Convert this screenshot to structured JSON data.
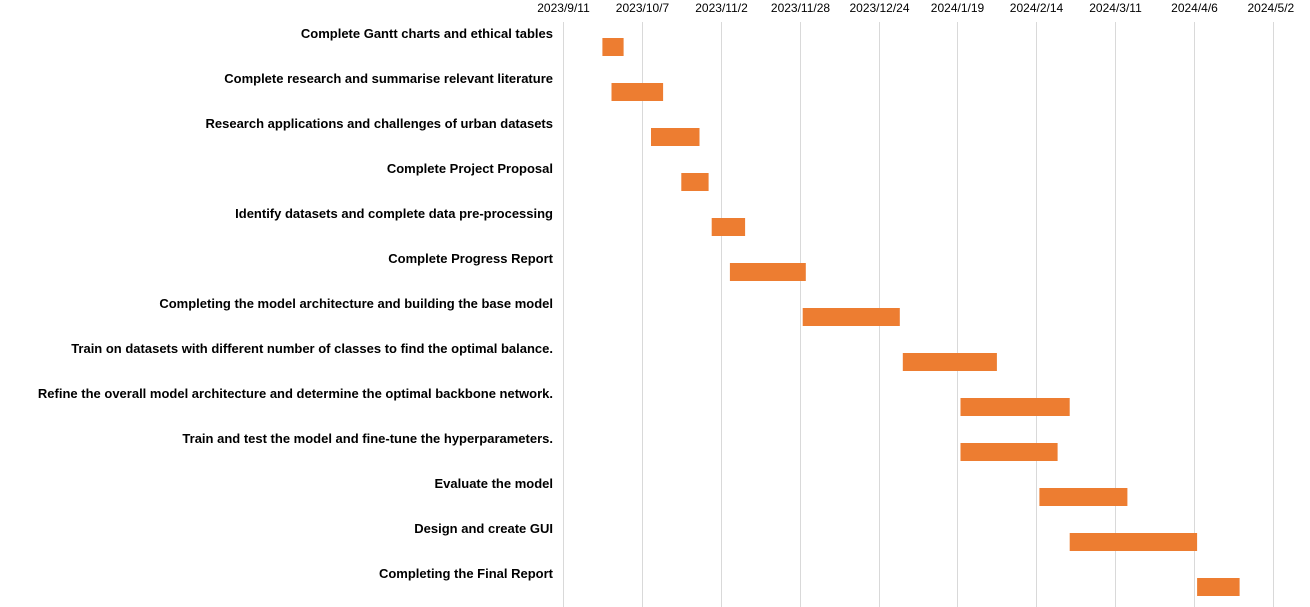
{
  "chart_data": {
    "type": "bar",
    "orientation": "horizontal-gantt",
    "title": "",
    "xlabel": "",
    "ylabel": "",
    "grid": "vertical",
    "legend": "none",
    "bar_color": "#ED7D31",
    "grid_color": "#D9D9D9",
    "xlim": [
      "2023-09-11",
      "2024-05-02"
    ],
    "x_ticks": [
      "2023/9/11",
      "2023/10/7",
      "2023/11/2",
      "2023/11/28",
      "2023/12/24",
      "2024/1/19",
      "2024/2/14",
      "2024/3/11",
      "2024/4/6",
      "2024/5/2"
    ],
    "x_tick_dates": [
      "2023-09-11",
      "2023-10-07",
      "2023-11-02",
      "2023-11-28",
      "2023-12-24",
      "2024-01-19",
      "2024-02-14",
      "2024-03-11",
      "2024-04-06",
      "2024-05-02"
    ],
    "tasks": [
      {
        "name": "Complete Gantt charts and ethical tables",
        "start": "2023-09-24",
        "end": "2023-10-01"
      },
      {
        "name": "Complete research and summarise relevant literature",
        "start": "2023-09-27",
        "end": "2023-10-14"
      },
      {
        "name": "Research applications and challenges of urban datasets",
        "start": "2023-10-10",
        "end": "2023-10-26"
      },
      {
        "name": "Complete Project Proposal",
        "start": "2023-10-20",
        "end": "2023-10-29"
      },
      {
        "name": "Identify datasets and complete data pre-processing",
        "start": "2023-10-30",
        "end": "2023-11-10"
      },
      {
        "name": "Complete Progress Report",
        "start": "2023-11-05",
        "end": "2023-11-30"
      },
      {
        "name": "Completing the model architecture and building the base model",
        "start": "2023-11-29",
        "end": "2023-12-31"
      },
      {
        "name": "Train on datasets with different number of classes to find the optimal balance.",
        "start": "2024-01-01",
        "end": "2024-02-01"
      },
      {
        "name": "Refine the overall model architecture and determine the optimal backbone network.",
        "start": "2024-01-20",
        "end": "2024-02-25"
      },
      {
        "name": "Train and test the model and fine-tune the hyperparameters.",
        "start": "2024-01-20",
        "end": "2024-02-21"
      },
      {
        "name": "Evaluate the model",
        "start": "2024-02-15",
        "end": "2024-03-15"
      },
      {
        "name": "Design and create GUI",
        "start": "2024-02-25",
        "end": "2024-04-07"
      },
      {
        "name": "Completing the Final Report",
        "start": "2024-04-07",
        "end": "2024-04-21"
      }
    ]
  }
}
